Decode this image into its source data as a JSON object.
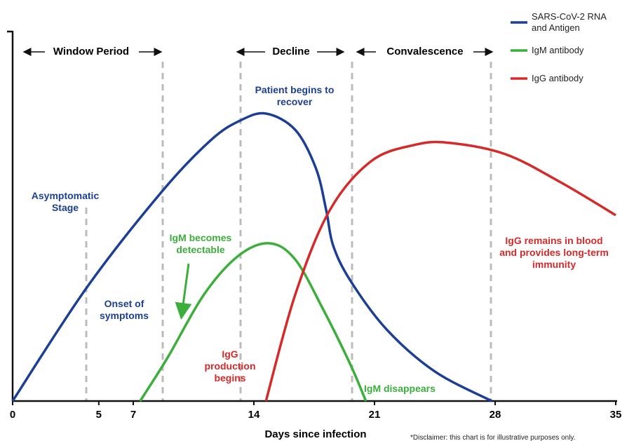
{
  "chart_data": {
    "type": "line",
    "x_label": "Days since infection",
    "xlim": [
      0,
      35
    ],
    "xticks": [
      0,
      5,
      7,
      14,
      21,
      28,
      35
    ],
    "ylim": [
      0,
      100
    ],
    "legend": "top-right",
    "series": [
      {
        "name": "SARS-CoV-2 RNA and Antigen",
        "color": "#1c3f94",
        "x": [
          0,
          4.3,
          8.7,
          11.5,
          13.2,
          14.7,
          16.4,
          17.6,
          18.2,
          18.6,
          19.6,
          21.7,
          24.5,
          27.8
        ],
        "values": [
          0,
          30.7,
          56.9,
          70.6,
          75.9,
          77.8,
          73.4,
          63.0,
          51.6,
          42.1,
          32.6,
          19.4,
          8.0,
          0
        ]
      },
      {
        "name": "IgM antibody",
        "color": "#3cae3c",
        "x": [
          7.4,
          9.0,
          11.1,
          13.1,
          14.9,
          16.4,
          18.0,
          19.6,
          20.5
        ],
        "values": [
          0,
          11.8,
          28.8,
          39.3,
          42.7,
          38.3,
          25.0,
          9.9,
          0
        ]
      },
      {
        "name": "IgG antibody",
        "color": "#d42a2a",
        "x": [
          14.7,
          16.4,
          18.4,
          20.8,
          23.3,
          25.3,
          28.6,
          31.8,
          35
        ],
        "values": [
          0,
          28.8,
          51.6,
          64.9,
          69.3,
          69.9,
          66.8,
          59.2,
          50.3
        ]
      }
    ],
    "phases": [
      "Window Period",
      "Decline",
      "Convalescence"
    ],
    "annotations": [
      {
        "text": "Patient begins to recover",
        "color": "#1c3f94"
      },
      {
        "text": "Asymptomatic Stage",
        "color": "#1c3f94"
      },
      {
        "text": "Onset of symptoms",
        "color": "#1c3f94"
      },
      {
        "text": "IgM becomes detectable",
        "color": "#3cae3c"
      },
      {
        "text": "IgG production begins",
        "color": "#d42a2a"
      },
      {
        "text": "IgM disappears",
        "color": "#3cae3c"
      },
      {
        "text": "IgG remains in blood and provides long-term immunity",
        "color": "#d42a2a"
      }
    ],
    "disclaimer": "*Disclaimer: this chart is for illustrative purposes only."
  }
}
